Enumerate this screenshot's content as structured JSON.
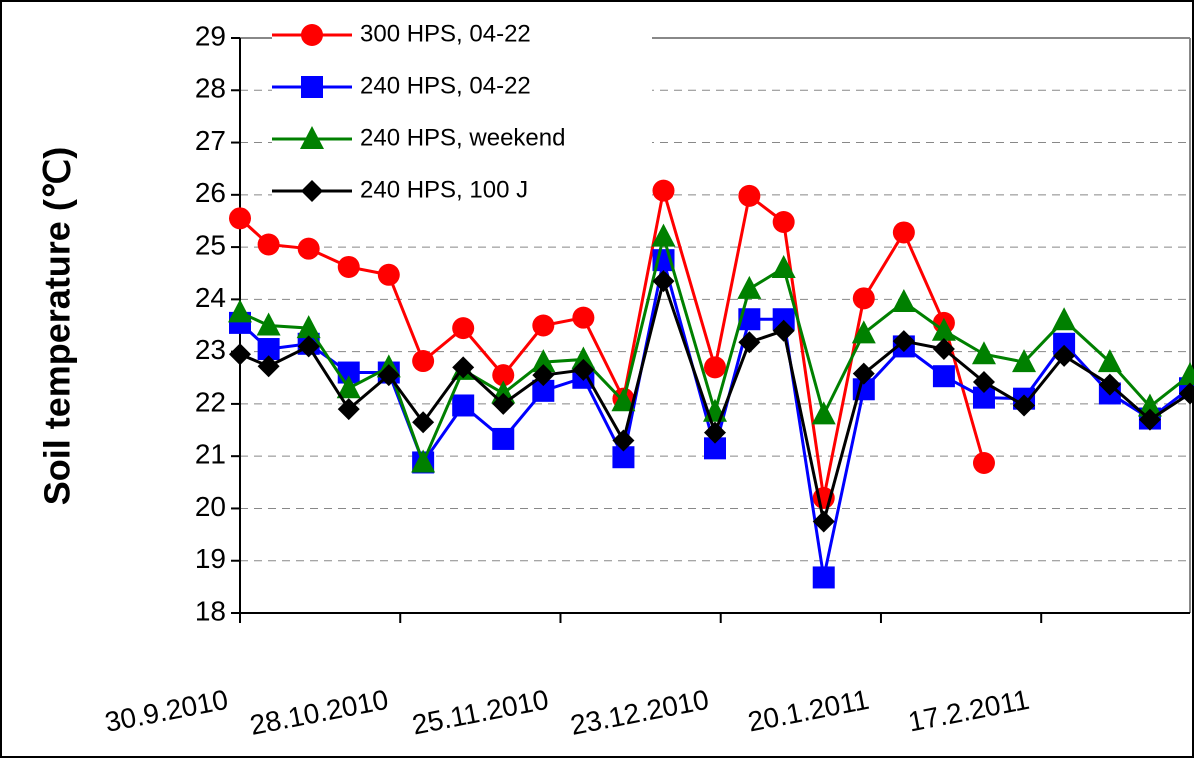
{
  "chart_data": {
    "type": "line",
    "y_label": "Soil temperature (℃)",
    "x": [
      "2010-09-30",
      "2010-10-05",
      "2010-10-12",
      "2010-10-19",
      "2010-10-26",
      "2010-11-01",
      "2010-11-08",
      "2010-11-15",
      "2010-11-22",
      "2010-11-29",
      "2010-12-06",
      "2010-12-13",
      "2010-12-22",
      "2010-12-28",
      "2011-01-03",
      "2011-01-10",
      "2011-01-17",
      "2011-01-24",
      "2011-01-31",
      "2011-02-07",
      "2011-02-14",
      "2011-02-21",
      "2011-03-01",
      "2011-03-08",
      "2011-03-15"
    ],
    "series": [
      {
        "name": "300 HPS, 04-22",
        "color": "#ff0000",
        "marker": "circle",
        "values": [
          25.55,
          25.05,
          24.97,
          24.62,
          24.47,
          22.82,
          23.45,
          22.55,
          23.5,
          23.65,
          22.1,
          26.08,
          22.7,
          25.98,
          25.48,
          20.2,
          24.02,
          25.28,
          23.55,
          20.87,
          null,
          null,
          null,
          null,
          null
        ]
      },
      {
        "name": "240 HPS, 04-22",
        "color": "#0000ff",
        "marker": "square",
        "values": [
          23.55,
          23.05,
          23.15,
          22.6,
          22.6,
          20.88,
          21.97,
          21.33,
          22.25,
          22.5,
          20.98,
          24.75,
          21.15,
          23.62,
          23.62,
          18.68,
          22.28,
          23.1,
          22.53,
          22.12,
          22.1,
          23.15,
          22.2,
          21.72,
          22.3
        ]
      },
      {
        "name": "240 HPS, weekend",
        "color": "#008000",
        "marker": "triangle",
        "values": [
          23.75,
          23.5,
          23.45,
          22.3,
          22.7,
          20.88,
          22.65,
          22.2,
          22.8,
          22.85,
          22.05,
          25.2,
          21.85,
          24.2,
          24.6,
          21.8,
          23.35,
          23.95,
          23.4,
          22.95,
          22.8,
          23.6,
          22.8,
          21.95,
          22.55
        ]
      },
      {
        "name": "240 HPS, 100 J",
        "color": "#000000",
        "marker": "diamond",
        "values": [
          22.95,
          22.72,
          23.1,
          21.9,
          22.55,
          21.65,
          22.7,
          22.0,
          22.55,
          22.65,
          21.3,
          24.35,
          21.45,
          23.18,
          23.4,
          19.75,
          22.58,
          23.2,
          23.05,
          22.42,
          21.97,
          22.92,
          22.37,
          21.7,
          22.2
        ]
      }
    ],
    "xlim": [
      "2010-09-30",
      "2011-03-15"
    ],
    "xticks": [
      {
        "value": "2010-09-30",
        "label": "30.9.2010"
      },
      {
        "value": "2010-10-28",
        "label": "28.10.2010"
      },
      {
        "value": "2010-11-25",
        "label": "25.11.2010"
      },
      {
        "value": "2010-12-23",
        "label": "23.12.2010"
      },
      {
        "value": "2011-01-20",
        "label": "20.1.2011"
      },
      {
        "value": "2011-02-17",
        "label": "17.2.2011"
      }
    ],
    "ylim": [
      18,
      29
    ],
    "yticks": [
      18,
      19,
      20,
      21,
      22,
      23,
      24,
      25,
      26,
      27,
      28,
      29
    ],
    "grid": true,
    "legend": "upper left"
  }
}
